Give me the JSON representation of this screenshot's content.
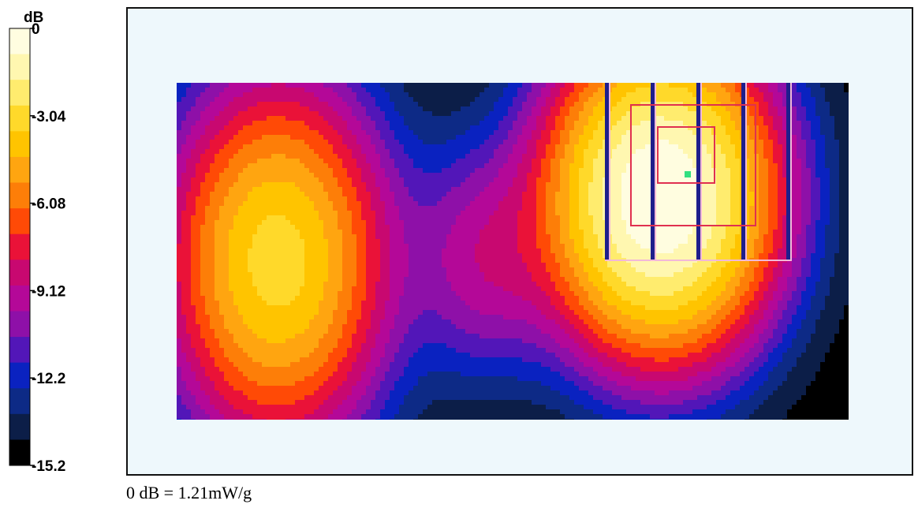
{
  "chart_data": {
    "type": "heatmap",
    "colorbar": {
      "unit_label": "dB",
      "tick_labels": [
        "0",
        "-3.04",
        "-6.08",
        "-9.12",
        "-12.2",
        "-15.2"
      ],
      "range": [
        -15.2,
        0
      ],
      "bands": [
        "#fffde0",
        "#fff7b0",
        "#ffec6e",
        "#ffd92a",
        "#ffc400",
        "#ffa510",
        "#fd7e08",
        "#ff4a06",
        "#ea1238",
        "#c80870",
        "#b40898",
        "#8e10a8",
        "#5216b8",
        "#0a22c0",
        "#0d2a86",
        "#0c1e48",
        "#000000"
      ]
    },
    "reference_note": "0 dB = 1.21mW/g"
  }
}
